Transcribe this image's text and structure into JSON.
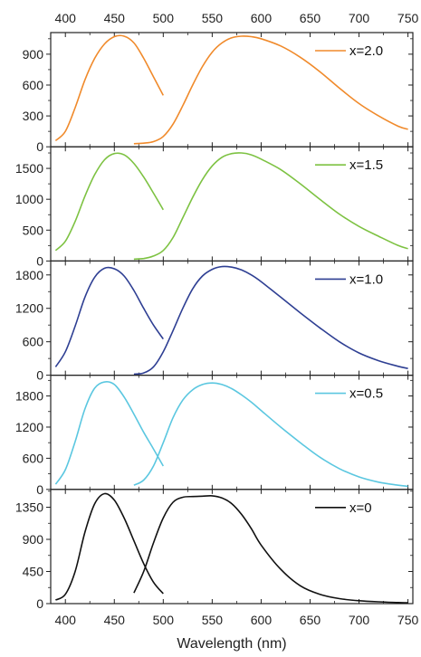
{
  "chart_data": {
    "type": "line",
    "xlabel": "Wavelength (nm)",
    "xlim": [
      385,
      755
    ],
    "x_ticks": [
      400,
      450,
      500,
      550,
      600,
      650,
      700,
      750
    ],
    "x_ticks_top": true,
    "grid": false,
    "legend_placement": "top-right",
    "panels": [
      {
        "label": "x=2.0",
        "color": "#F08A2B",
        "ylim": [
          0,
          1110
        ],
        "y_ticks": [
          0,
          300,
          600,
          900
        ],
        "excitation": {
          "x": [
            390,
            400,
            410,
            420,
            430,
            440,
            450,
            460,
            470,
            480,
            490,
            500
          ],
          "y": [
            60,
            150,
            380,
            650,
            860,
            1000,
            1070,
            1075,
            1010,
            860,
            680,
            500
          ]
        },
        "emission": {
          "x": [
            470,
            480,
            490,
            500,
            510,
            520,
            530,
            540,
            550,
            560,
            570,
            580,
            590,
            600,
            620,
            640,
            660,
            680,
            700,
            720,
            740,
            750
          ],
          "y": [
            30,
            35,
            50,
            100,
            220,
            400,
            600,
            780,
            920,
            1010,
            1060,
            1075,
            1070,
            1050,
            980,
            870,
            730,
            570,
            420,
            300,
            200,
            170
          ]
        }
      },
      {
        "label": "x=1.5",
        "color": "#7DC242",
        "ylim": [
          0,
          1850
        ],
        "y_ticks": [
          0,
          500,
          1000,
          1500
        ],
        "excitation": {
          "x": [
            390,
            400,
            410,
            420,
            430,
            440,
            450,
            460,
            470,
            480,
            490,
            500
          ],
          "y": [
            170,
            320,
            640,
            1050,
            1400,
            1640,
            1740,
            1720,
            1580,
            1360,
            1100,
            830
          ]
        },
        "emission": {
          "x": [
            470,
            480,
            490,
            500,
            510,
            520,
            530,
            540,
            550,
            560,
            570,
            580,
            590,
            600,
            620,
            640,
            660,
            680,
            700,
            720,
            740,
            750
          ],
          "y": [
            30,
            40,
            80,
            170,
            380,
            700,
            1030,
            1320,
            1540,
            1680,
            1740,
            1750,
            1720,
            1650,
            1480,
            1250,
            1000,
            760,
            560,
            400,
            250,
            200
          ]
        }
      },
      {
        "label": "x=1.0",
        "color": "#2E3F93",
        "ylim": [
          0,
          2050
        ],
        "y_ticks": [
          0,
          600,
          1200,
          1800
        ],
        "excitation": {
          "x": [
            390,
            400,
            410,
            420,
            430,
            440,
            450,
            460,
            470,
            480,
            490,
            500
          ],
          "y": [
            150,
            420,
            880,
            1400,
            1760,
            1920,
            1910,
            1780,
            1520,
            1200,
            900,
            650
          ]
        },
        "emission": {
          "x": [
            470,
            480,
            490,
            500,
            510,
            520,
            530,
            540,
            550,
            560,
            570,
            580,
            590,
            600,
            620,
            640,
            660,
            680,
            700,
            720,
            740,
            750
          ],
          "y": [
            20,
            40,
            150,
            420,
            800,
            1200,
            1550,
            1780,
            1900,
            1950,
            1940,
            1890,
            1800,
            1680,
            1400,
            1120,
            850,
            600,
            400,
            260,
            160,
            120
          ]
        }
      },
      {
        "label": "x=0.5",
        "color": "#5BC7E0",
        "ylim": [
          0,
          2200
        ],
        "y_ticks": [
          0,
          600,
          1200,
          1800
        ],
        "excitation": {
          "x": [
            390,
            400,
            410,
            420,
            430,
            440,
            450,
            460,
            470,
            480,
            490,
            500
          ],
          "y": [
            100,
            380,
            920,
            1550,
            1950,
            2070,
            2020,
            1780,
            1450,
            1100,
            780,
            450
          ]
        },
        "emission": {
          "x": [
            470,
            480,
            490,
            500,
            510,
            520,
            530,
            540,
            550,
            560,
            570,
            580,
            590,
            600,
            620,
            640,
            660,
            680,
            700,
            720,
            740,
            750
          ],
          "y": [
            80,
            180,
            450,
            900,
            1380,
            1720,
            1920,
            2020,
            2050,
            2020,
            1940,
            1820,
            1680,
            1520,
            1200,
            900,
            620,
            400,
            240,
            140,
            80,
            60
          ]
        }
      },
      {
        "label": "x=0",
        "color": "#111111",
        "ylim": [
          0,
          1600
        ],
        "y_ticks": [
          0,
          450,
          900,
          1350
        ],
        "excitation": {
          "x": [
            390,
            400,
            410,
            420,
            430,
            440,
            450,
            460,
            470,
            480,
            490,
            500
          ],
          "y": [
            50,
            130,
            450,
            1000,
            1400,
            1540,
            1450,
            1200,
            880,
            560,
            300,
            140
          ]
        },
        "emission": {
          "x": [
            470,
            480,
            490,
            500,
            510,
            520,
            530,
            540,
            550,
            560,
            570,
            580,
            590,
            600,
            620,
            640,
            660,
            680,
            700,
            720,
            740,
            750
          ],
          "y": [
            150,
            450,
            850,
            1200,
            1420,
            1490,
            1500,
            1505,
            1510,
            1480,
            1400,
            1250,
            1050,
            820,
            480,
            250,
            130,
            70,
            40,
            25,
            15,
            12
          ]
        }
      }
    ]
  }
}
